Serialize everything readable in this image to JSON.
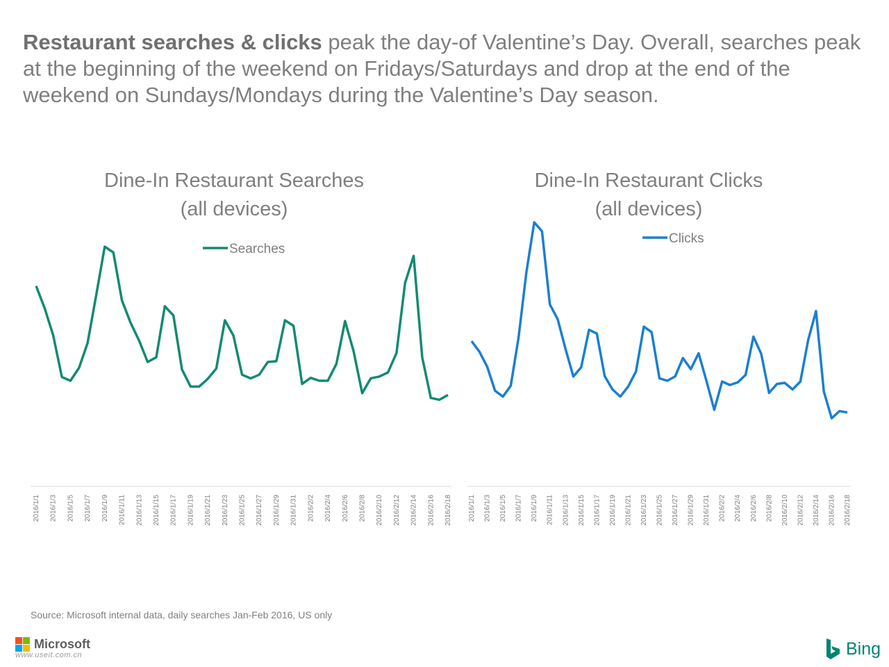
{
  "headline": {
    "lead": "Restaurant searches & clicks",
    "rest": " peak the day-of Valentine’s Day.  Overall, searches peak at the beginning of the weekend on Fridays/Saturdays and drop at the end of the weekend on Sundays/Mondays during the Valentine’s Day season."
  },
  "chart_data": [
    {
      "type": "line",
      "title": [
        "Dine-In Restaurant Searches",
        "(all devices)"
      ],
      "legend": "top-center",
      "grid": false,
      "color": "#138a72",
      "ylim": [
        0,
        100
      ],
      "x": [
        "2016/1/1",
        "2016/1/2",
        "2016/1/3",
        "2016/1/4",
        "2016/1/5",
        "2016/1/6",
        "2016/1/7",
        "2016/1/8",
        "2016/1/9",
        "2016/1/10",
        "2016/1/11",
        "2016/1/12",
        "2016/1/13",
        "2016/1/14",
        "2016/1/15",
        "2016/1/16",
        "2016/1/17",
        "2016/1/18",
        "2016/1/19",
        "2016/1/20",
        "2016/1/21",
        "2016/1/22",
        "2016/1/23",
        "2016/1/24",
        "2016/1/25",
        "2016/1/26",
        "2016/1/27",
        "2016/1/28",
        "2016/1/29",
        "2016/1/30",
        "2016/1/31",
        "2016/2/1",
        "2016/2/2",
        "2016/2/3",
        "2016/2/4",
        "2016/2/5",
        "2016/2/6",
        "2016/2/7",
        "2016/2/8",
        "2016/2/9",
        "2016/2/10",
        "2016/2/11",
        "2016/2/12",
        "2016/2/13",
        "2016/2/14",
        "2016/2/15",
        "2016/2/16",
        "2016/2/17",
        "2016/2/18"
      ],
      "x_ticks": [
        "2016/1/1",
        "2016/1/3",
        "2016/1/5",
        "2016/1/7",
        "2016/1/9",
        "2016/1/11",
        "2016/1/13",
        "2016/1/15",
        "2016/1/17",
        "2016/1/19",
        "2016/1/21",
        "2016/1/23",
        "2016/1/25",
        "2016/1/27",
        "2016/1/29",
        "2016/1/31",
        "2016/2/2",
        "2016/2/4",
        "2016/2/6",
        "2016/2/8",
        "2016/2/10",
        "2016/2/12",
        "2016/2/14",
        "2016/2/16",
        "2016/2/18"
      ],
      "series": [
        {
          "name": "Searches",
          "values": [
            75.9,
            67.4,
            57.1,
            41.4,
            40.0,
            44.9,
            54.3,
            72.4,
            90.8,
            88.6,
            70.5,
            62.0,
            55.2,
            47.1,
            48.9,
            68.2,
            64.7,
            44.3,
            37.8,
            37.8,
            40.7,
            44.6,
            62.9,
            57.1,
            42.3,
            40.9,
            42.3,
            47.1,
            47.4,
            62.9,
            60.8,
            38.8,
            41.1,
            40.0,
            40.0,
            46.4,
            62.6,
            51.2,
            35.3,
            40.9,
            41.6,
            43.1,
            50.5,
            77.0,
            87.3,
            48.9,
            33.5,
            32.8,
            34.6
          ]
        }
      ]
    },
    {
      "type": "line",
      "title": [
        "Dine-In Restaurant Clicks",
        "(all devices)"
      ],
      "legend": "top-center",
      "grid": false,
      "color": "#1b7fd1",
      "ylim": [
        0,
        100
      ],
      "x": [
        "2016/1/1",
        "2016/1/2",
        "2016/1/3",
        "2016/1/4",
        "2016/1/5",
        "2016/1/6",
        "2016/1/7",
        "2016/1/8",
        "2016/1/9",
        "2016/1/10",
        "2016/1/11",
        "2016/1/12",
        "2016/1/13",
        "2016/1/14",
        "2016/1/15",
        "2016/1/16",
        "2016/1/17",
        "2016/1/18",
        "2016/1/19",
        "2016/1/20",
        "2016/1/21",
        "2016/1/22",
        "2016/1/23",
        "2016/1/24",
        "2016/1/25",
        "2016/1/26",
        "2016/1/27",
        "2016/1/28",
        "2016/1/29",
        "2016/1/30",
        "2016/1/31",
        "2016/2/1",
        "2016/2/2",
        "2016/2/3",
        "2016/2/4",
        "2016/2/5",
        "2016/2/6",
        "2016/2/7",
        "2016/2/8",
        "2016/2/9",
        "2016/2/10",
        "2016/2/11",
        "2016/2/12",
        "2016/2/13",
        "2016/2/14",
        "2016/2/15",
        "2016/2/16",
        "2016/2/17",
        "2016/2/18"
      ],
      "x_ticks": [
        "2016/1/1",
        "2016/1/3",
        "2016/1/5",
        "2016/1/7",
        "2016/1/9",
        "2016/1/11",
        "2016/1/13",
        "2016/1/15",
        "2016/1/17",
        "2016/1/19",
        "2016/1/21",
        "2016/1/23",
        "2016/1/25",
        "2016/1/27",
        "2016/1/29",
        "2016/1/31",
        "2016/2/2",
        "2016/2/4",
        "2016/2/6",
        "2016/2/8",
        "2016/2/10",
        "2016/2/12",
        "2016/2/14",
        "2016/2/16",
        "2016/2/18"
      ],
      "series": [
        {
          "name": "Clicks",
          "values": [
            55.0,
            51.0,
            45.3,
            36.2,
            34.0,
            38.1,
            56.3,
            81.1,
            100.0,
            96.6,
            68.9,
            63.3,
            52.0,
            41.6,
            45.1,
            59.3,
            57.9,
            41.8,
            36.7,
            34.0,
            37.8,
            43.5,
            60.5,
            58.4,
            40.9,
            40.0,
            41.6,
            48.6,
            44.4,
            50.4,
            40.0,
            29.0,
            39.7,
            38.4,
            39.4,
            42.2,
            56.7,
            50.2,
            35.4,
            38.8,
            39.2,
            36.7,
            39.7,
            55.4,
            66.4,
            35.9,
            25.8,
            28.5,
            28.0
          ]
        }
      ]
    }
  ],
  "source": "Source: Microsoft internal data, daily searches Jan-Feb 2016, US only",
  "footer": {
    "microsoft": "Microsoft",
    "watermark": "www.useit.com.cn",
    "bing": "Bing",
    "colors": {
      "ms_red": "#f25022",
      "ms_green": "#7fba00",
      "ms_blue": "#00a4ef",
      "ms_yellow": "#ffb900",
      "bing": "#008373"
    }
  }
}
